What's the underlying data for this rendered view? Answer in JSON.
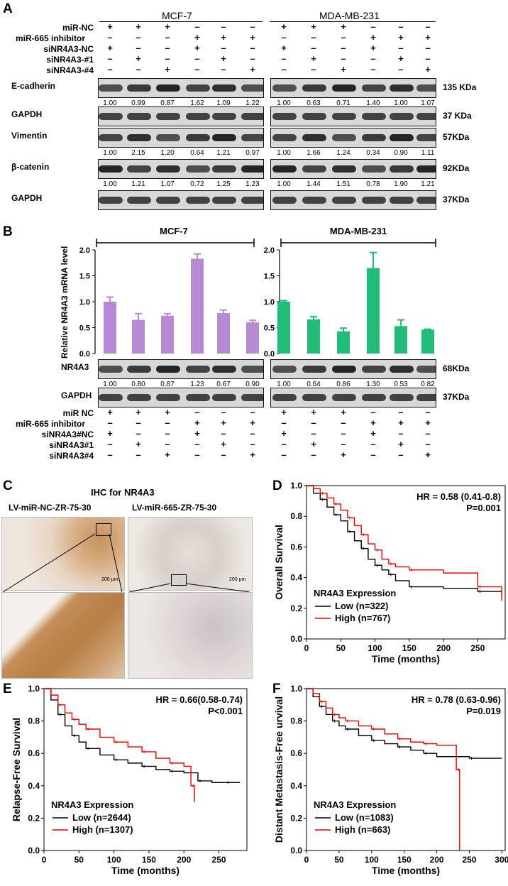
{
  "panels": {
    "A": "A",
    "B": "B",
    "C": "C",
    "D": "D",
    "E": "E",
    "F": "F"
  },
  "panelA": {
    "cell_lines": [
      "MCF-7",
      "MDA-MB-231"
    ],
    "condition_labels": [
      "miR-NC",
      "miR-665 inhibitor",
      "siNR4A3-NC",
      "siNR4A3-#1",
      "siNR4A3-#4"
    ],
    "signs": [
      [
        "+",
        "+",
        "+",
        "–",
        "–",
        "–"
      ],
      [
        "–",
        "–",
        "–",
        "+",
        "+",
        "+"
      ],
      [
        "+",
        "–",
        "–",
        "+",
        "–",
        "–"
      ],
      [
        "–",
        "+",
        "–",
        "–",
        "+",
        "–"
      ],
      [
        "–",
        "–",
        "+",
        "–",
        "–",
        "+"
      ]
    ],
    "blots": [
      {
        "name": "E-cadherin",
        "kda": "135 KDa",
        "mcf": [
          "1.00",
          "0.99",
          "0.87",
          "1.62",
          "1.09",
          "1.22"
        ],
        "mda": [
          "1.00",
          "0.63",
          "0.71",
          "1.40",
          "1.00",
          "1.07"
        ]
      },
      {
        "name": "GAPDH",
        "kda": "37 KDa",
        "mcf": [],
        "mda": []
      },
      {
        "name": "Vimentin",
        "kda": "57KDa",
        "mcf": [
          "1.00",
          "2.15",
          "1.20",
          "0.64",
          "1.21",
          "0.97"
        ],
        "mda": [
          "1.00",
          "1.66",
          "1.24",
          "0.34",
          "0.90",
          "1.11"
        ]
      },
      {
        "name": "β-catenin",
        "kda": "92KDa",
        "mcf": [
          "1.00",
          "1.21",
          "1.07",
          "0.72",
          "1.25",
          "1.23"
        ],
        "mda": [
          "1.00",
          "1.44",
          "1.51",
          "0.78",
          "1.90",
          "1.21"
        ]
      },
      {
        "name": "GAPDH",
        "kda": "37KDa",
        "mcf": [],
        "mda": []
      }
    ]
  },
  "panelB": {
    "ylabel": "Relative NR4A3 mRNA level",
    "charts": [
      {
        "title": "MCF-7",
        "color": "#b88ad3",
        "values": [
          1.0,
          0.65,
          0.73,
          1.83,
          0.78,
          0.6
        ],
        "errors": [
          0.09,
          0.12,
          0.04,
          0.09,
          0.06,
          0.04
        ]
      },
      {
        "title": "MDA-MB-231",
        "color": "#22bb77",
        "values": [
          1.0,
          0.66,
          0.43,
          1.65,
          0.53,
          0.46
        ],
        "errors": [
          0.02,
          0.05,
          0.06,
          0.3,
          0.12,
          0.01
        ]
      }
    ],
    "yticks": [
      "0.0",
      "0.5",
      "1.0",
      "1.5",
      "2.0"
    ],
    "blots": [
      {
        "name": "NR4A3",
        "kda": "68KDa",
        "mcf": [
          "1.00",
          "0.80",
          "0.87",
          "1.23",
          "0.67",
          "0.90"
        ],
        "mda": [
          "1.00",
          "0.64",
          "0.86",
          "1.30",
          "0.53",
          "0.82"
        ]
      },
      {
        "name": "GAPDH",
        "kda": "37KDa",
        "mcf": [],
        "mda": []
      }
    ],
    "condition_labels": [
      "miR NC",
      "miR-665 inhibitor",
      "siNR4A3#NC",
      "siNR4A3#1",
      "siNR4A3#4"
    ],
    "signs": [
      [
        "+",
        "+",
        "+",
        "–",
        "–",
        "–"
      ],
      [
        "–",
        "–",
        "–",
        "+",
        "+",
        "+"
      ],
      [
        "+",
        "–",
        "–",
        "+",
        "–",
        "–"
      ],
      [
        "–",
        "+",
        "–",
        "–",
        "+",
        "–"
      ],
      [
        "–",
        "–",
        "+",
        "–",
        "–",
        "+"
      ]
    ]
  },
  "panelC": {
    "title": "IHC for NR4A3",
    "left_label": "LV-miR-NC-ZR-75-30",
    "right_label": "LV-miR-665-ZR-75-30",
    "scale": "200 μm"
  },
  "chart_data": [
    {
      "type": "line",
      "panel": "D",
      "title": "HR = 0.58 (0.41-0.8)",
      "subtitle": "P=0.001",
      "xlabel": "Time (months)",
      "ylabel": "Overall Survival",
      "xlim": [
        0,
        290
      ],
      "ylim": [
        0,
        1.0
      ],
      "xticks": [
        0,
        50,
        100,
        150,
        200,
        250
      ],
      "yticks": [
        0.0,
        0.2,
        0.4,
        0.6,
        0.8,
        1.0
      ],
      "legend_title": "NR4A3 Expression",
      "series": [
        {
          "name": "Low  (n=322)",
          "color": "#000000",
          "x": [
            0,
            10,
            20,
            30,
            40,
            50,
            60,
            70,
            80,
            90,
            100,
            110,
            120,
            130,
            150,
            200,
            250,
            285
          ],
          "y": [
            1.0,
            0.95,
            0.91,
            0.86,
            0.81,
            0.77,
            0.7,
            0.64,
            0.59,
            0.52,
            0.48,
            0.45,
            0.42,
            0.38,
            0.34,
            0.33,
            0.31,
            0.28
          ]
        },
        {
          "name": "High (n=767)",
          "color": "#ee0000",
          "x": [
            0,
            10,
            20,
            30,
            40,
            50,
            60,
            70,
            80,
            90,
            100,
            110,
            120,
            130,
            150,
            200,
            250,
            285
          ],
          "y": [
            1.0,
            0.98,
            0.95,
            0.92,
            0.88,
            0.84,
            0.79,
            0.74,
            0.68,
            0.62,
            0.58,
            0.52,
            0.49,
            0.47,
            0.45,
            0.43,
            0.34,
            0.25
          ]
        }
      ]
    },
    {
      "type": "line",
      "panel": "E",
      "title": "HR = 0.66(0.58-0.74)",
      "subtitle": "P<0.001",
      "xlabel": "Time (months)",
      "ylabel": "Relapse-Free Survival",
      "xlim": [
        0,
        290
      ],
      "ylim": [
        0,
        1.0
      ],
      "xticks": [
        0,
        50,
        100,
        150,
        200,
        250
      ],
      "yticks": [
        0.0,
        0.2,
        0.4,
        0.6,
        0.8,
        1.0
      ],
      "legend_title": "NR4A3 Expression",
      "series": [
        {
          "name": "Low  (n=2644)",
          "color": "#000000",
          "x": [
            0,
            10,
            20,
            30,
            40,
            50,
            60,
            80,
            100,
            120,
            140,
            160,
            180,
            200,
            220,
            240,
            260,
            280
          ],
          "y": [
            1.0,
            0.93,
            0.84,
            0.77,
            0.71,
            0.67,
            0.63,
            0.59,
            0.56,
            0.54,
            0.52,
            0.5,
            0.49,
            0.48,
            0.43,
            0.42,
            0.42,
            0.42
          ]
        },
        {
          "name": "High (n=1307)",
          "color": "#ee0000",
          "x": [
            0,
            10,
            20,
            30,
            40,
            50,
            60,
            80,
            100,
            120,
            140,
            160,
            180,
            200,
            210,
            215
          ],
          "y": [
            1.0,
            0.96,
            0.9,
            0.85,
            0.81,
            0.78,
            0.75,
            0.7,
            0.67,
            0.64,
            0.61,
            0.57,
            0.54,
            0.52,
            0.4,
            0.3
          ]
        }
      ]
    },
    {
      "type": "line",
      "panel": "F",
      "title": "HR = 0.78 (0.63-0.96)",
      "subtitle": "P=0.019",
      "xlabel": "Time (months)",
      "ylabel": "Distant Metastasis-Free urvival",
      "xlim": [
        0,
        305
      ],
      "ylim": [
        0,
        1.0
      ],
      "xticks": [
        0,
        50,
        100,
        150,
        200,
        250,
        300
      ],
      "yticks": [
        0.0,
        0.2,
        0.4,
        0.6,
        0.8,
        1.0
      ],
      "legend_title": "NR4A3 Expression",
      "series": [
        {
          "name": "Low  (n=1083)",
          "color": "#000000",
          "x": [
            0,
            10,
            20,
            30,
            40,
            50,
            60,
            80,
            100,
            120,
            140,
            160,
            180,
            200,
            250,
            300
          ],
          "y": [
            1.0,
            0.95,
            0.89,
            0.84,
            0.8,
            0.77,
            0.75,
            0.71,
            0.68,
            0.66,
            0.64,
            0.62,
            0.6,
            0.58,
            0.57,
            0.57
          ]
        },
        {
          "name": "High (n=663)",
          "color": "#ee0000",
          "x": [
            0,
            10,
            20,
            30,
            40,
            50,
            60,
            80,
            100,
            120,
            140,
            160,
            180,
            200,
            230,
            235
          ],
          "y": [
            1.0,
            0.97,
            0.92,
            0.88,
            0.84,
            0.82,
            0.8,
            0.77,
            0.75,
            0.72,
            0.69,
            0.67,
            0.66,
            0.65,
            0.5,
            0.0
          ]
        }
      ]
    }
  ]
}
